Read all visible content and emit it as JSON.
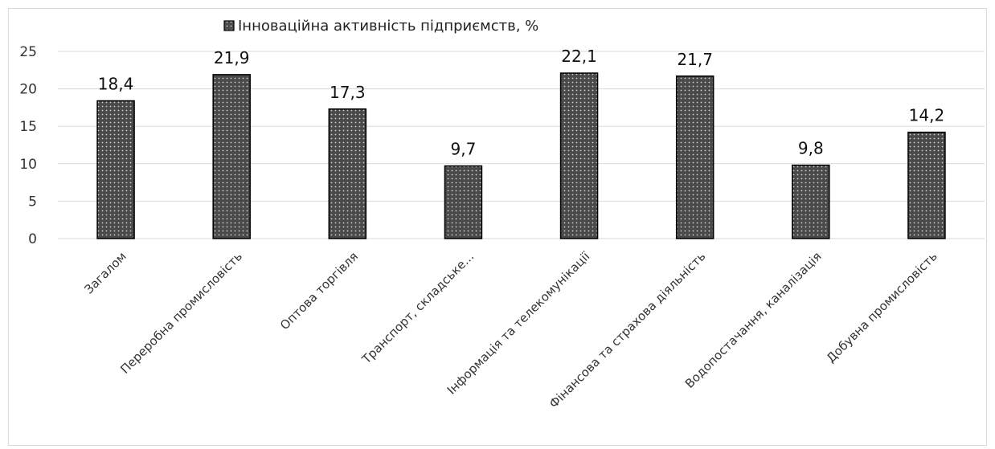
{
  "chart_data": {
    "type": "bar",
    "legend": "Інноваційна активність підприємств, %",
    "legend_position": "top",
    "categories": [
      "Загалом",
      "Переробна промисловість",
      "Оптова торгівля",
      "Транспорт, складське...",
      "Інформація та телекомунікації",
      "Фінансова та страхова діяльність",
      "Водопостачання, каналізація",
      "Добувна промисловість"
    ],
    "values": [
      18.4,
      21.9,
      17.3,
      9.7,
      22.1,
      21.7,
      9.8,
      14.2
    ],
    "value_labels": [
      "18,4",
      "21,9",
      "17,3",
      "9,7",
      "22,1",
      "21,7",
      "9,8",
      "14,2"
    ],
    "ylim": [
      0,
      25
    ],
    "yticks": [
      "0",
      "5",
      "10",
      "15",
      "20",
      "25"
    ],
    "grid": true,
    "bar_color": "#555555"
  }
}
